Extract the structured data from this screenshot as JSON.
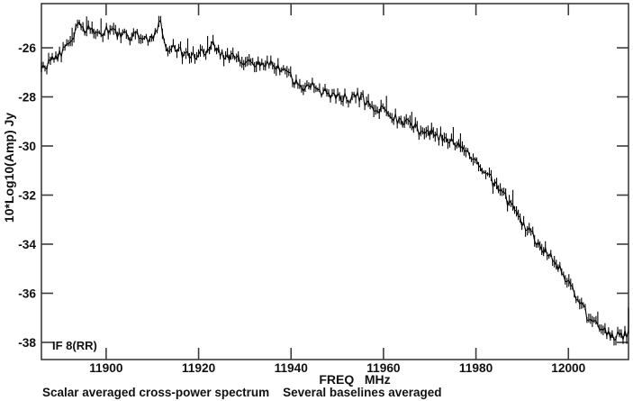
{
  "chart_data": {
    "type": "line",
    "title": "",
    "xlabel": "FREQ   MHz",
    "ylabel": "10*Log10(Amp) Jy",
    "caption": "Scalar averaged cross-power spectrum    Several baselines averaged",
    "annotation": "IF 8(RR)",
    "xlim": [
      11886,
      12013
    ],
    "ylim": [
      -38.7,
      -24.2
    ],
    "x_ticks": [
      11900,
      11920,
      11940,
      11960,
      11980,
      12000
    ],
    "y_ticks": [
      -26,
      -28,
      -30,
      -32,
      -34,
      -36,
      -38
    ],
    "grid": false,
    "legend_position": "none",
    "line_color": "#000000",
    "frame_color": "#3c3c3c",
    "channels": 326,
    "noise_db": 0.22,
    "end_spike_db": 0.9,
    "series": [
      {
        "name": "IF 8(RR)",
        "x": [
          11886.0,
          11887.2,
          11888.3,
          11889.5,
          11891.1,
          11892.6,
          11894.2,
          11895.4,
          11896.9,
          11898.9,
          11900.8,
          11902.8,
          11904.7,
          11906.7,
          11908.6,
          11910.2,
          11911.8,
          11912.9,
          11915.1,
          11918.0,
          11920.9,
          11923.3,
          11925.4,
          11928.1,
          11930.7,
          11933.6,
          11936.5,
          11939.1,
          11941.8,
          11944.3,
          11946.9,
          11949.6,
          11952.3,
          11954.7,
          11957.4,
          11960.1,
          11962.9,
          11965.2,
          11967.9,
          11970.3,
          11973.0,
          11975.5,
          11978.5,
          11981.4,
          11984.3,
          11987.2,
          11990.2,
          11993.1,
          11996.0,
          11998.9,
          12001.5,
          12004.2,
          12006.7,
          12009.1,
          12011.2,
          12013.0
        ],
        "y": [
          -26.7,
          -26.8,
          -26.45,
          -26.3,
          -26.0,
          -25.55,
          -24.95,
          -25.3,
          -25.2,
          -25.4,
          -25.25,
          -25.45,
          -25.6,
          -25.5,
          -25.65,
          -25.55,
          -24.95,
          -25.9,
          -26.1,
          -26.35,
          -26.2,
          -25.75,
          -26.45,
          -26.35,
          -26.65,
          -26.75,
          -26.7,
          -26.95,
          -27.6,
          -27.55,
          -27.8,
          -27.95,
          -28.1,
          -28.0,
          -28.35,
          -28.5,
          -28.9,
          -29.1,
          -29.4,
          -29.5,
          -29.7,
          -29.9,
          -30.4,
          -31.0,
          -31.6,
          -32.35,
          -33.2,
          -33.85,
          -34.5,
          -35.2,
          -36.0,
          -37.0,
          -37.4,
          -37.7,
          -37.75,
          -37.7
        ]
      }
    ]
  }
}
